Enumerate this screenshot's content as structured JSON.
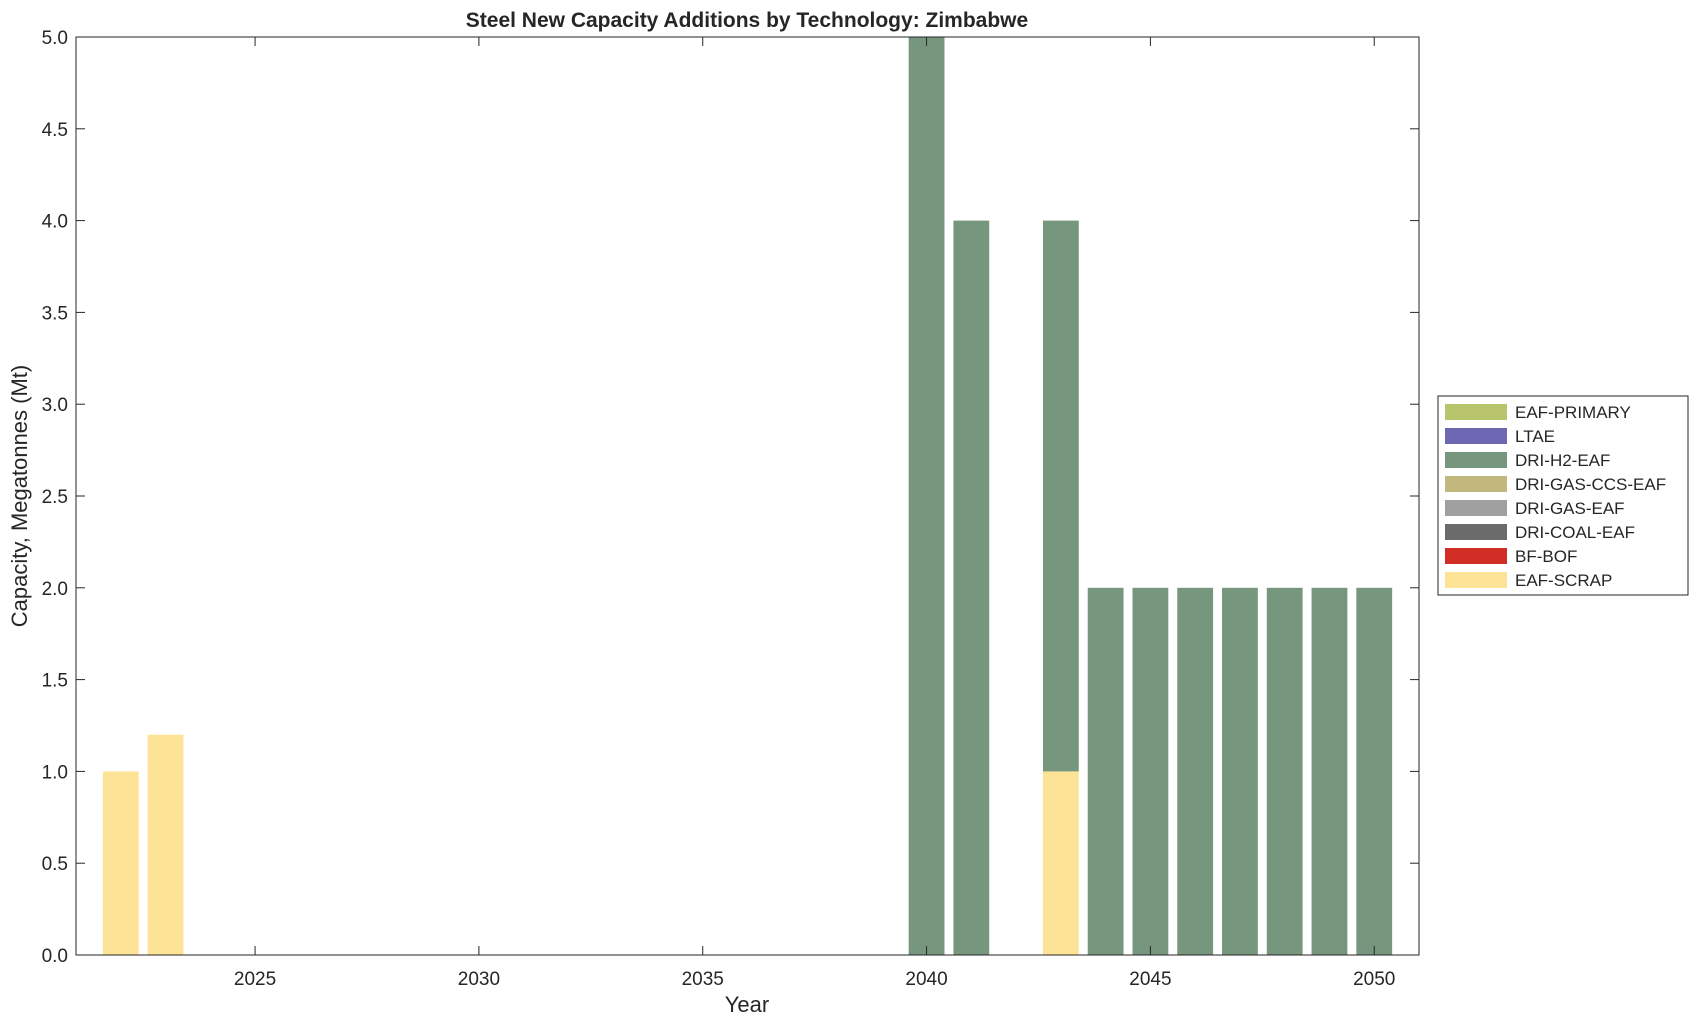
{
  "chart_data": {
    "type": "bar",
    "stacked": true,
    "title": "Steel New Capacity Additions by Technology: Zimbabwe",
    "xlabel": "Year",
    "ylabel": "Capacity, Megatonnes (Mt)",
    "xlim": [
      2021,
      2051
    ],
    "ylim": [
      0,
      5.0
    ],
    "x_ticks": [
      2025,
      2030,
      2035,
      2040,
      2045,
      2050
    ],
    "y_ticks": [
      0.0,
      0.5,
      1.0,
      1.5,
      2.0,
      2.5,
      3.0,
      3.5,
      4.0,
      4.5,
      5.0
    ],
    "y_tick_labels": [
      "0.0",
      "0.5",
      "1.0",
      "1.5",
      "2.0",
      "2.5",
      "3.0",
      "3.5",
      "4.0",
      "4.5",
      "5.0"
    ],
    "grid": false,
    "legend_position": "outside-right",
    "categories": [
      2022,
      2023,
      2024,
      2025,
      2026,
      2027,
      2028,
      2029,
      2030,
      2031,
      2032,
      2033,
      2034,
      2035,
      2036,
      2037,
      2038,
      2039,
      2040,
      2041,
      2042,
      2043,
      2044,
      2045,
      2046,
      2047,
      2048,
      2049,
      2050
    ],
    "series": [
      {
        "name": "EAF-SCRAP",
        "color": "#fde395",
        "values": [
          1.0,
          1.2,
          0,
          0,
          0,
          0,
          0,
          0,
          0,
          0,
          0,
          0,
          0,
          0,
          0,
          0,
          0,
          0,
          0,
          0,
          0,
          1.0,
          0,
          0,
          0,
          0,
          0,
          0,
          0
        ]
      },
      {
        "name": "BF-BOF",
        "color": "#d12e26",
        "values": [
          0,
          0,
          0,
          0,
          0,
          0,
          0,
          0,
          0,
          0,
          0,
          0,
          0,
          0,
          0,
          0,
          0,
          0,
          0,
          0,
          0,
          0,
          0,
          0,
          0,
          0,
          0,
          0,
          0
        ]
      },
      {
        "name": "DRI-COAL-EAF",
        "color": "#6b6b6b",
        "values": [
          0,
          0,
          0,
          0,
          0,
          0,
          0,
          0,
          0,
          0,
          0,
          0,
          0,
          0,
          0,
          0,
          0,
          0,
          0,
          0,
          0,
          0,
          0,
          0,
          0,
          0,
          0,
          0,
          0
        ]
      },
      {
        "name": "DRI-GAS-EAF",
        "color": "#a0a0a0",
        "values": [
          0,
          0,
          0,
          0,
          0,
          0,
          0,
          0,
          0,
          0,
          0,
          0,
          0,
          0,
          0,
          0,
          0,
          0,
          0,
          0,
          0,
          0,
          0,
          0,
          0,
          0,
          0,
          0,
          0
        ]
      },
      {
        "name": "DRI-GAS-CCS-EAF",
        "color": "#c2b77d",
        "values": [
          0,
          0,
          0,
          0,
          0,
          0,
          0,
          0,
          0,
          0,
          0,
          0,
          0,
          0,
          0,
          0,
          0,
          0,
          0,
          0,
          0,
          0,
          0,
          0,
          0,
          0,
          0,
          0,
          0
        ]
      },
      {
        "name": "DRI-H2-EAF",
        "color": "#76977d",
        "values": [
          0,
          0,
          0,
          0,
          0,
          0,
          0,
          0,
          0,
          0,
          0,
          0,
          0,
          0,
          0,
          0,
          0,
          0,
          5.0,
          4.0,
          0,
          3.0,
          2.0,
          2.0,
          2.0,
          2.0,
          2.0,
          2.0,
          2.0
        ]
      },
      {
        "name": "LTAE",
        "color": "#6d67b4",
        "values": [
          0,
          0,
          0,
          0,
          0,
          0,
          0,
          0,
          0,
          0,
          0,
          0,
          0,
          0,
          0,
          0,
          0,
          0,
          0,
          0,
          0,
          0,
          0,
          0,
          0,
          0,
          0,
          0,
          0
        ]
      },
      {
        "name": "EAF-PRIMARY",
        "color": "#b8c56c",
        "values": [
          0,
          0,
          0,
          0,
          0,
          0,
          0,
          0,
          0,
          0,
          0,
          0,
          0,
          0,
          0,
          0,
          0,
          0,
          0,
          0,
          0,
          0,
          0,
          0,
          0,
          0,
          0,
          0,
          0
        ]
      }
    ],
    "legend_order": [
      "EAF-PRIMARY",
      "LTAE",
      "DRI-H2-EAF",
      "DRI-GAS-CCS-EAF",
      "DRI-GAS-EAF",
      "DRI-COAL-EAF",
      "BF-BOF",
      "EAF-SCRAP"
    ]
  }
}
